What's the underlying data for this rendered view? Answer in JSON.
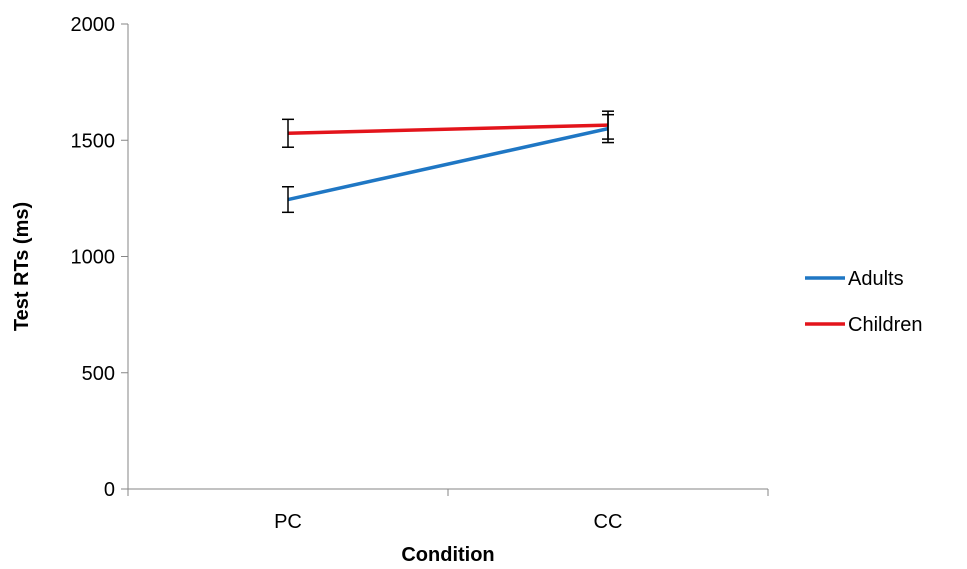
{
  "chart_data": {
    "type": "line",
    "xlabel": "Condition",
    "ylabel": "Test RTs (ms)",
    "categories": [
      "PC",
      "CC"
    ],
    "ylim": [
      0,
      2000
    ],
    "yticks": [
      "0",
      "500",
      "1000",
      "1500",
      "2000"
    ],
    "grid": false,
    "legend_position": "right",
    "series": [
      {
        "name": "Adults",
        "color": "#1f77c4",
        "values": [
          1245,
          1550
        ],
        "errors": [
          55,
          60
        ]
      },
      {
        "name": "Children",
        "color": "#e3141b",
        "values": [
          1530,
          1565
        ],
        "errors": [
          60,
          60
        ]
      }
    ]
  }
}
